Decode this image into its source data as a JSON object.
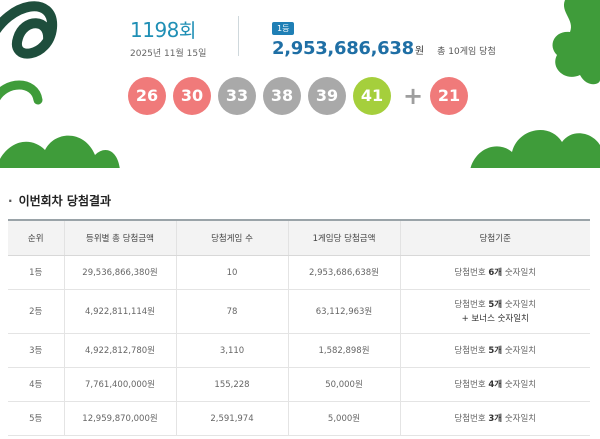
{
  "draw": {
    "number": "1198",
    "suffix": "회",
    "date": "2025년 11월 15일"
  },
  "first_prize": {
    "badge": "1등",
    "amount": "2,953,686,638",
    "unit": "원",
    "winners": "총 10게임 당첨"
  },
  "balls": [
    {
      "value": "26",
      "color": "#f07a7a"
    },
    {
      "value": "30",
      "color": "#f07a7a"
    },
    {
      "value": "33",
      "color": "#a9a9a9"
    },
    {
      "value": "38",
      "color": "#a9a9a9"
    },
    {
      "value": "39",
      "color": "#a9a9a9"
    },
    {
      "value": "41",
      "color": "#a5cf3c"
    }
  ],
  "plus_sign": "+",
  "bonus_ball": {
    "value": "21",
    "color": "#f07a7a"
  },
  "section": {
    "bullet": "·",
    "title": "이번회차 당첨결과"
  },
  "table": {
    "headers": [
      "순위",
      "등위별 총 당첨금액",
      "당첨게임 수",
      "1게임당 당첨금액",
      "당첨기준"
    ],
    "rows": [
      {
        "rank": "1등",
        "total": "29,536,866,380원",
        "games": "10",
        "per_game": "2,953,686,638원",
        "crit_pre": "당첨번호 ",
        "crit_bold": "6개",
        "crit_post": " 숫자일치",
        "crit_extra": ""
      },
      {
        "rank": "2등",
        "total": "4,922,811,114원",
        "games": "78",
        "per_game": "63,112,963원",
        "crit_pre": "당첨번호 ",
        "crit_bold": "5개",
        "crit_post": " 숫자일치",
        "crit_extra": "+ 보너스 숫자일치"
      },
      {
        "rank": "3등",
        "total": "4,922,812,780원",
        "games": "3,110",
        "per_game": "1,582,898원",
        "crit_pre": "당첨번호 ",
        "crit_bold": "5개",
        "crit_post": " 숫자일치",
        "crit_extra": ""
      },
      {
        "rank": "4등",
        "total": "7,761,400,000원",
        "games": "155,228",
        "per_game": "50,000원",
        "crit_pre": "당첨번호 ",
        "crit_bold": "4개",
        "crit_post": " 숫자일치",
        "crit_extra": ""
      },
      {
        "rank": "5등",
        "total": "12,959,870,000원",
        "games": "2,591,974",
        "per_game": "5,000원",
        "crit_pre": "당첨번호 ",
        "crit_bold": "3개",
        "crit_post": " 숫자일치",
        "crit_extra": ""
      }
    ]
  },
  "colors": {
    "deco_dark": "#1e4e3c",
    "deco_green": "#3f9c3a"
  }
}
